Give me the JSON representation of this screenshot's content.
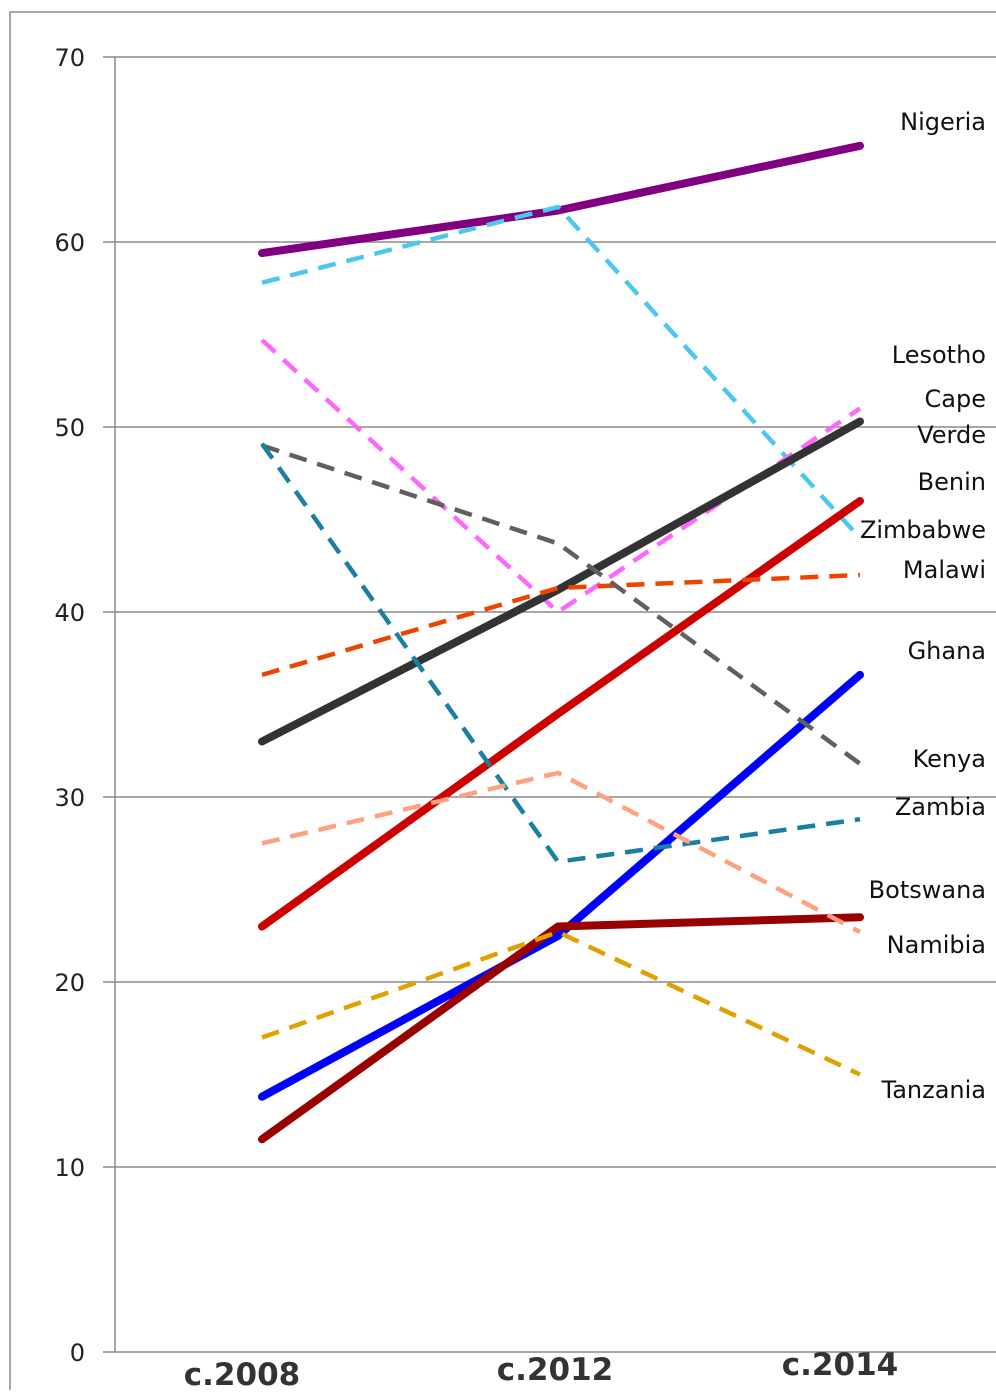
{
  "chart_data": {
    "type": "line",
    "title": "",
    "xlabel": "",
    "ylabel": "",
    "categories": [
      "c.2008",
      "c.2012",
      "c.2014"
    ],
    "ylim": [
      0,
      70
    ],
    "yticks": [
      0,
      10,
      20,
      30,
      40,
      50,
      60,
      70
    ],
    "grid": true,
    "legend": "none",
    "series": [
      {
        "name": "Nigeria",
        "label_lines": [
          "Nigeria"
        ],
        "values": [
          59.4,
          61.7,
          65.2
        ],
        "color": "#800080",
        "style": "solid"
      },
      {
        "name": "Zimbabwe",
        "label_lines": [
          "Zimbabwe"
        ],
        "values": [
          57.8,
          61.9,
          44.0
        ],
        "color": "#4cc8ee",
        "style": "dashed"
      },
      {
        "name": "Lesotho",
        "label_lines": [
          "Lesotho"
        ],
        "values": [
          54.7,
          40.0,
          51.0
        ],
        "color": "#ff66ff",
        "style": "dashed"
      },
      {
        "name": "Cape Verde",
        "label_lines": [
          "Cape",
          "Verde"
        ],
        "values": [
          33.0,
          41.2,
          50.3
        ],
        "color": "#333333",
        "style": "solid"
      },
      {
        "name": "Benin",
        "label_lines": [
          "Benin"
        ],
        "values": [
          23.0,
          34.5,
          46.0
        ],
        "color": "#cc0000",
        "style": "solid"
      },
      {
        "name": "Malawi",
        "label_lines": [
          "Malawi"
        ],
        "values": [
          36.6,
          41.3,
          42.0
        ],
        "color": "#ee4400",
        "style": "dashed"
      },
      {
        "name": "Ghana",
        "label_lines": [
          "Ghana"
        ],
        "values": [
          13.8,
          22.5,
          36.6
        ],
        "color": "#0000ff",
        "style": "solid"
      },
      {
        "name": "Kenya",
        "label_lines": [
          "Kenya"
        ],
        "values": [
          49.0,
          43.7,
          31.8
        ],
        "color": "#606060",
        "style": "dashed"
      },
      {
        "name": "Zambia",
        "label_lines": [
          "Zambia"
        ],
        "values": [
          49.1,
          26.5,
          28.8
        ],
        "color": "#1a7fa0",
        "style": "dashed"
      },
      {
        "name": "Botswana",
        "label_lines": [
          "Botswana"
        ],
        "values": [
          11.5,
          23.0,
          23.5
        ],
        "color": "#990000",
        "style": "solid"
      },
      {
        "name": "Namibia",
        "label_lines": [
          "Namibia"
        ],
        "values": [
          27.5,
          31.3,
          22.7
        ],
        "color": "#ffa080",
        "style": "dashed"
      },
      {
        "name": "Tanzania",
        "label_lines": [
          "Tanzania"
        ],
        "values": [
          17.0,
          22.7,
          15.0
        ],
        "color": "#e0a000",
        "style": "dashed"
      }
    ]
  }
}
